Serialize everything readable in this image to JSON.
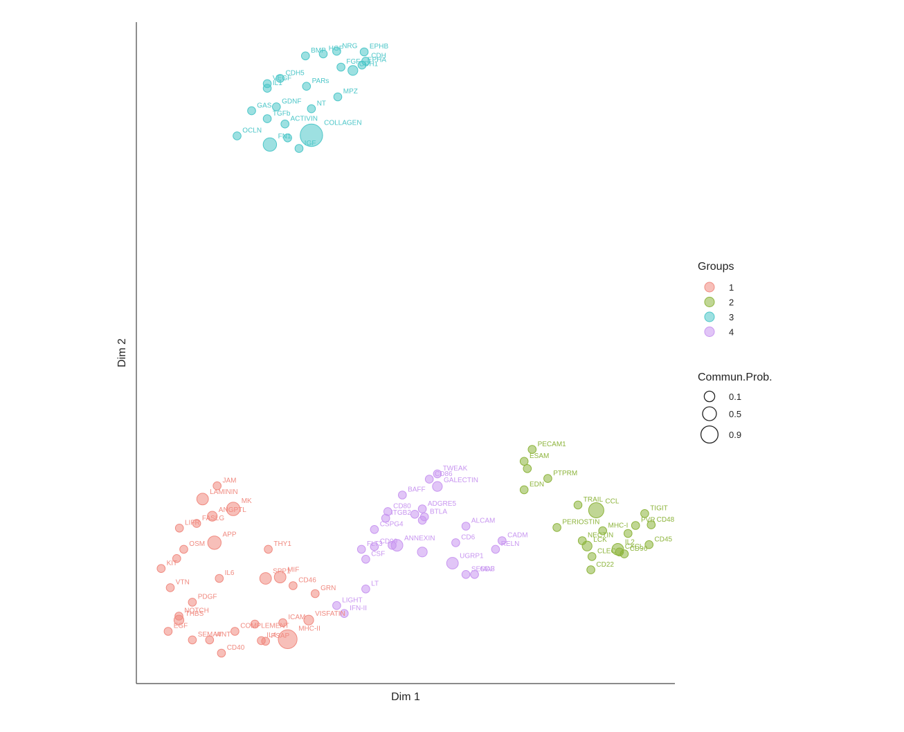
{
  "chart_data": {
    "type": "scatter",
    "title": "",
    "xlabel": "Dim 1",
    "ylabel": "Dim 2",
    "xlim": [
      0,
      100
    ],
    "ylim": [
      0,
      100
    ],
    "grid": false,
    "legend_placement": "right",
    "groups_title": "Groups",
    "size_title": "Commun.Prob.",
    "groups": [
      {
        "name": "1",
        "color": "#F08A80"
      },
      {
        "name": "2",
        "color": "#8DB43C"
      },
      {
        "name": "3",
        "color": "#4CC6C8"
      },
      {
        "name": "4",
        "color": "#C896F0"
      }
    ],
    "size_legend": [
      {
        "label": "0.1",
        "value": 0.1
      },
      {
        "label": "0.5",
        "value": 0.5
      },
      {
        "label": "0.9",
        "value": 0.9
      }
    ],
    "points": [
      {
        "label": "EPHB",
        "group": 3,
        "x": 42.3,
        "y": 95.5,
        "size": 0.1
      },
      {
        "label": "NRG",
        "group": 3,
        "x": 37.2,
        "y": 95.6,
        "size": 0.1
      },
      {
        "label": "HGF",
        "group": 3,
        "x": 34.7,
        "y": 95.2,
        "size": 0.1
      },
      {
        "label": "BMP",
        "group": 3,
        "x": 31.4,
        "y": 94.9,
        "size": 0.1
      },
      {
        "label": "CDH",
        "group": 3,
        "x": 42.6,
        "y": 94.1,
        "size": 0.1
      },
      {
        "label": "FGF",
        "group": 3,
        "x": 38.0,
        "y": 93.2,
        "size": 0.1
      },
      {
        "label": "EPHA",
        "group": 3,
        "x": 41.9,
        "y": 93.5,
        "size": 0.1
      },
      {
        "label": "CDH5",
        "group": 3,
        "x": 26.7,
        "y": 91.5,
        "size": 0.1
      },
      {
        "label": "VEGF",
        "group": 3,
        "x": 24.3,
        "y": 90.7,
        "size": 0.1
      },
      {
        "label": "PARs",
        "group": 3,
        "x": 31.6,
        "y": 90.3,
        "size": 0.1
      },
      {
        "label": "CDH1",
        "group": 3,
        "x": 40.2,
        "y": 92.7,
        "size": 0.2
      },
      {
        "label": "IL1",
        "group": 3,
        "x": 24.3,
        "y": 90.0,
        "size": 0.1
      },
      {
        "label": "NT",
        "group": 3,
        "x": 32.5,
        "y": 86.9,
        "size": 0.1
      },
      {
        "label": "MPZ",
        "group": 3,
        "x": 37.4,
        "y": 88.7,
        "size": 0.1
      },
      {
        "label": "GAS",
        "group": 3,
        "x": 21.4,
        "y": 86.6,
        "size": 0.1
      },
      {
        "label": "GDNF",
        "group": 3,
        "x": 26.0,
        "y": 87.2,
        "size": 0.1
      },
      {
        "label": "TGFb",
        "group": 3,
        "x": 24.3,
        "y": 85.4,
        "size": 0.1
      },
      {
        "label": "ACTIVIN",
        "group": 3,
        "x": 27.6,
        "y": 84.6,
        "size": 0.1
      },
      {
        "label": "COLLAGEN",
        "group": 3,
        "x": 32.5,
        "y": 82.9,
        "size": 0.9
      },
      {
        "label": "OCLN",
        "group": 3,
        "x": 18.7,
        "y": 82.8,
        "size": 0.1
      },
      {
        "label": "FN1",
        "group": 3,
        "x": 24.8,
        "y": 81.5,
        "size": 0.4
      },
      {
        "label": "IGF",
        "group": 3,
        "x": 30.2,
        "y": 80.9,
        "size": 0.1
      },
      {
        "label": "",
        "group": 3,
        "x": 28.1,
        "y": 82.5,
        "size": 0.1
      },
      {
        "label": "JAM",
        "group": 1,
        "x": 15.0,
        "y": 29.9,
        "size": 0.1
      },
      {
        "label": "MK",
        "group": 1,
        "x": 18.0,
        "y": 26.4,
        "size": 0.4
      },
      {
        "label": "LAMININ",
        "group": 1,
        "x": 12.3,
        "y": 27.9,
        "size": 0.3
      },
      {
        "label": "ANGPTL",
        "group": 1,
        "x": 14.1,
        "y": 25.3,
        "size": 0.2
      },
      {
        "label": "LIFR",
        "group": 1,
        "x": 8.0,
        "y": 23.5,
        "size": 0.1
      },
      {
        "label": "FASLG",
        "group": 1,
        "x": 11.2,
        "y": 24.2,
        "size": 0.1
      },
      {
        "label": "APP",
        "group": 1,
        "x": 14.5,
        "y": 21.3,
        "size": 0.4
      },
      {
        "label": "THY1",
        "group": 1,
        "x": 24.5,
        "y": 20.3,
        "size": 0.1
      },
      {
        "label": "OSM",
        "group": 1,
        "x": 8.8,
        "y": 20.3,
        "size": 0.1
      },
      {
        "label": "",
        "group": 1,
        "x": 7.5,
        "y": 18.9,
        "size": 0.1
      },
      {
        "label": "KIT",
        "group": 1,
        "x": 4.6,
        "y": 17.4,
        "size": 0.1
      },
      {
        "label": "IL6",
        "group": 1,
        "x": 15.4,
        "y": 15.9,
        "size": 0.1
      },
      {
        "label": "SPP1",
        "group": 1,
        "x": 24.0,
        "y": 15.9,
        "size": 0.3
      },
      {
        "label": "MIF",
        "group": 1,
        "x": 26.7,
        "y": 16.1,
        "size": 0.3
      },
      {
        "label": "VTN",
        "group": 1,
        "x": 6.3,
        "y": 14.5,
        "size": 0.1
      },
      {
        "label": "CD46",
        "group": 1,
        "x": 29.1,
        "y": 14.8,
        "size": 0.1
      },
      {
        "label": "GRN",
        "group": 1,
        "x": 33.2,
        "y": 13.6,
        "size": 0.1
      },
      {
        "label": "PDGF",
        "group": 1,
        "x": 10.4,
        "y": 12.3,
        "size": 0.1
      },
      {
        "label": "NOTCH",
        "group": 1,
        "x": 7.9,
        "y": 10.2,
        "size": 0.1
      },
      {
        "label": "VISFATIN",
        "group": 1,
        "x": 32.0,
        "y": 9.6,
        "size": 0.2
      },
      {
        "label": "THBS",
        "group": 1,
        "x": 7.9,
        "y": 9.6,
        "size": 0.2
      },
      {
        "label": "ICAM",
        "group": 1,
        "x": 27.2,
        "y": 9.2,
        "size": 0.1
      },
      {
        "label": "COMPLEMENT",
        "group": 1,
        "x": 18.3,
        "y": 7.9,
        "size": 0.1
      },
      {
        "label": "",
        "group": 1,
        "x": 22.0,
        "y": 9.0,
        "size": 0.1
      },
      {
        "label": "PSAP",
        "group": 1,
        "x": 24.0,
        "y": 6.4,
        "size": 0.1
      },
      {
        "label": "EGF",
        "group": 1,
        "x": 5.9,
        "y": 7.9,
        "size": 0.1
      },
      {
        "label": "WNT",
        "group": 1,
        "x": 13.6,
        "y": 6.6,
        "size": 0.1
      },
      {
        "label": "MHC-II",
        "group": 1,
        "x": 28.1,
        "y": 6.7,
        "size": 0.7
      },
      {
        "label": "SEMA4",
        "group": 1,
        "x": 10.4,
        "y": 6.6,
        "size": 0.1
      },
      {
        "label": "IL4",
        "group": 1,
        "x": 23.2,
        "y": 6.5,
        "size": 0.1
      },
      {
        "label": "CD40",
        "group": 1,
        "x": 15.8,
        "y": 4.6,
        "size": 0.1
      },
      {
        "label": "TWEAK",
        "group": 4,
        "x": 55.9,
        "y": 31.7,
        "size": 0.1
      },
      {
        "label": "CD86",
        "group": 4,
        "x": 54.4,
        "y": 30.9,
        "size": 0.1
      },
      {
        "label": "GALECTIN",
        "group": 4,
        "x": 55.9,
        "y": 29.8,
        "size": 0.2
      },
      {
        "label": "BAFF",
        "group": 4,
        "x": 49.4,
        "y": 28.5,
        "size": 0.1
      },
      {
        "label": "CD80",
        "group": 4,
        "x": 46.7,
        "y": 26.0,
        "size": 0.1
      },
      {
        "label": "ADGRE5",
        "group": 4,
        "x": 53.1,
        "y": 26.4,
        "size": 0.1
      },
      {
        "label": "",
        "group": 4,
        "x": 51.7,
        "y": 25.6,
        "size": 0.1
      },
      {
        "label": "ITGB2",
        "group": 4,
        "x": 46.3,
        "y": 25.0,
        "size": 0.1
      },
      {
        "label": "BTLA",
        "group": 4,
        "x": 53.5,
        "y": 25.2,
        "size": 0.1
      },
      {
        "label": "",
        "group": 4,
        "x": 53.1,
        "y": 24.7,
        "size": 0.1
      },
      {
        "label": "ALCAM",
        "group": 4,
        "x": 61.2,
        "y": 23.8,
        "size": 0.1
      },
      {
        "label": "CSPG4",
        "group": 4,
        "x": 44.2,
        "y": 23.3,
        "size": 0.1
      },
      {
        "label": "CD6",
        "group": 4,
        "x": 59.3,
        "y": 21.3,
        "size": 0.1
      },
      {
        "label": "CADM",
        "group": 4,
        "x": 67.9,
        "y": 21.6,
        "size": 0.1
      },
      {
        "label": "ANNEXIN",
        "group": 4,
        "x": 48.4,
        "y": 20.9,
        "size": 0.3
      },
      {
        "label": "FLT3",
        "group": 4,
        "x": 41.8,
        "y": 20.3,
        "size": 0.1
      },
      {
        "label": "CD99",
        "group": 4,
        "x": 44.2,
        "y": 20.7,
        "size": 0.1
      },
      {
        "label": "",
        "group": 4,
        "x": 47.5,
        "y": 20.9,
        "size": 0.1
      },
      {
        "label": "",
        "group": 4,
        "x": 53.1,
        "y": 19.9,
        "size": 0.2
      },
      {
        "label": "RELN",
        "group": 4,
        "x": 66.7,
        "y": 20.3,
        "size": 0.1
      },
      {
        "label": "CSF",
        "group": 4,
        "x": 42.6,
        "y": 18.8,
        "size": 0.1
      },
      {
        "label": "UGRP1",
        "group": 4,
        "x": 58.7,
        "y": 18.2,
        "size": 0.3
      },
      {
        "label": "SEMA3",
        "group": 4,
        "x": 61.2,
        "y": 16.5,
        "size": 0.1
      },
      {
        "label": "GDF",
        "group": 4,
        "x": 62.8,
        "y": 16.5,
        "size": 0.1
      },
      {
        "label": "LT",
        "group": 4,
        "x": 42.6,
        "y": 14.3,
        "size": 0.1
      },
      {
        "label": "LIGHT",
        "group": 4,
        "x": 37.2,
        "y": 11.8,
        "size": 0.1
      },
      {
        "label": "IFN-II",
        "group": 4,
        "x": 38.6,
        "y": 10.6,
        "size": 0.1
      },
      {
        "label": "PECAM1",
        "group": 2,
        "x": 73.5,
        "y": 35.4,
        "size": 0.1
      },
      {
        "label": "ESAM",
        "group": 2,
        "x": 72.0,
        "y": 33.6,
        "size": 0.1
      },
      {
        "label": "",
        "group": 2,
        "x": 72.6,
        "y": 32.5,
        "size": 0.1
      },
      {
        "label": "PTPRM",
        "group": 2,
        "x": 76.4,
        "y": 31.0,
        "size": 0.1
      },
      {
        "label": "EDN",
        "group": 2,
        "x": 72.0,
        "y": 29.3,
        "size": 0.1
      },
      {
        "label": "TRAIL",
        "group": 2,
        "x": 82.0,
        "y": 27.0,
        "size": 0.1
      },
      {
        "label": "CCL",
        "group": 2,
        "x": 85.4,
        "y": 26.2,
        "size": 0.5
      },
      {
        "label": "TIGIT",
        "group": 2,
        "x": 94.4,
        "y": 25.7,
        "size": 0.1
      },
      {
        "label": "PERIOSTIN",
        "group": 2,
        "x": 78.1,
        "y": 23.6,
        "size": 0.1
      },
      {
        "label": "MHC-I",
        "group": 2,
        "x": 86.6,
        "y": 23.1,
        "size": 0.1
      },
      {
        "label": "PVR",
        "group": 2,
        "x": 92.7,
        "y": 23.9,
        "size": 0.1
      },
      {
        "label": "CD48",
        "group": 2,
        "x": 95.6,
        "y": 24.0,
        "size": 0.1
      },
      {
        "label": "NECTIN",
        "group": 2,
        "x": 82.8,
        "y": 21.6,
        "size": 0.1
      },
      {
        "label": "LCK",
        "group": 2,
        "x": 83.7,
        "y": 20.8,
        "size": 0.2
      },
      {
        "label": "",
        "group": 2,
        "x": 91.3,
        "y": 22.7,
        "size": 0.1
      },
      {
        "label": "IL2",
        "group": 2,
        "x": 89.4,
        "y": 20.3,
        "size": 0.3
      },
      {
        "label": "CLEC",
        "group": 2,
        "x": 84.6,
        "y": 19.2,
        "size": 0.1
      },
      {
        "label": "CD45",
        "group": 2,
        "x": 95.2,
        "y": 21.0,
        "size": 0.1
      },
      {
        "label": "CXCL",
        "group": 2,
        "x": 89.7,
        "y": 19.9,
        "size": 0.1
      },
      {
        "label": "CD22",
        "group": 2,
        "x": 84.4,
        "y": 17.2,
        "size": 0.1
      },
      {
        "label": "CD96",
        "group": 2,
        "x": 90.6,
        "y": 19.6,
        "size": 0.1
      }
    ]
  }
}
